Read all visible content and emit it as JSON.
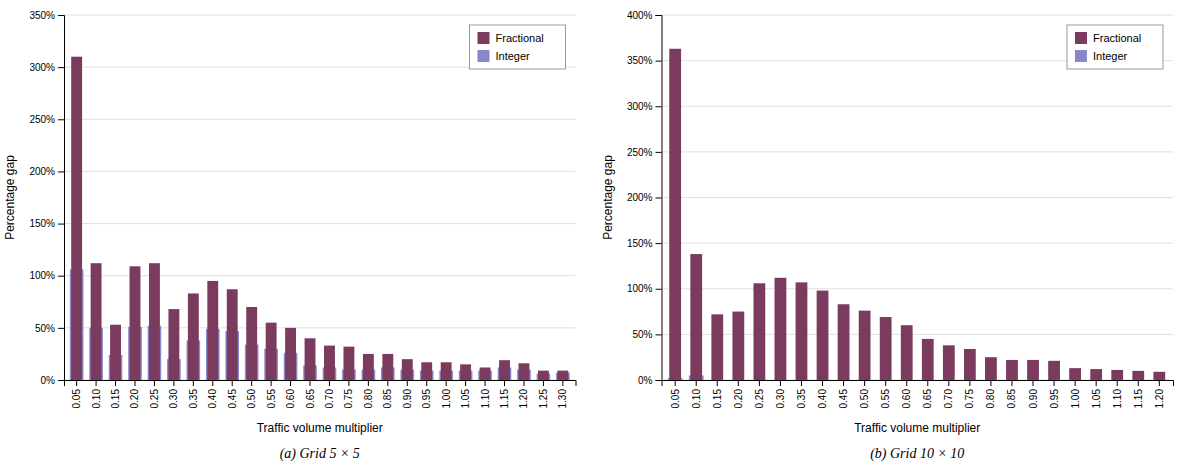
{
  "chart_data": [
    {
      "type": "bar",
      "title": "(a)  Grid 5 × 5",
      "xlabel": "Traffic volume multiplier",
      "ylabel": "Percentage gap",
      "categories": [
        "0.05",
        "0.10",
        "0.15",
        "0.20",
        "0.25",
        "0.30",
        "0.35",
        "0.40",
        "0.45",
        "0.50",
        "0.55",
        "0.60",
        "0.65",
        "0.70",
        "0.75",
        "0.80",
        "0.85",
        "0.90",
        "0.95",
        "1.00",
        "1.05",
        "1.10",
        "1.15",
        "1.20",
        "1.25",
        "1.30"
      ],
      "series": [
        {
          "name": "Fractional",
          "color": "#7B3B5E",
          "values": [
            3.1,
            1.12,
            0.53,
            1.09,
            1.12,
            0.68,
            0.83,
            0.95,
            0.87,
            0.7,
            0.55,
            0.5,
            0.4,
            0.33,
            0.32,
            0.25,
            0.25,
            0.2,
            0.17,
            0.17,
            0.15,
            0.12,
            0.19,
            0.16,
            0.09,
            0.09
          ]
        },
        {
          "name": "Integer",
          "color": "#8888CC",
          "values": [
            1.06,
            0.5,
            0.24,
            0.51,
            0.52,
            0.2,
            0.38,
            0.49,
            0.47,
            0.34,
            0.3,
            0.26,
            0.14,
            0.12,
            0.1,
            0.1,
            0.12,
            0.1,
            0.09,
            0.09,
            0.09,
            0.09,
            0.12,
            0.1,
            0.06,
            0.07
          ]
        }
      ],
      "ylim": [
        0,
        3.5
      ],
      "yticks": [
        {
          "value": 0,
          "label": "0%"
        },
        {
          "value": 0.5,
          "label": "50%"
        },
        {
          "value": 1.0,
          "label": "100%"
        },
        {
          "value": 1.5,
          "label": "150%"
        },
        {
          "value": 2.0,
          "label": "200%"
        },
        {
          "value": 2.5,
          "label": "250%"
        },
        {
          "value": 3.0,
          "label": "300%"
        },
        {
          "value": 3.5,
          "label": "350%"
        }
      ],
      "grid": true,
      "legend": "upper right"
    },
    {
      "type": "bar",
      "title": "(b)  Grid 10 × 10",
      "xlabel": "Traffic volume multiplier",
      "ylabel": "Percentage gap",
      "categories": [
        "0.05",
        "0.10",
        "0.15",
        "0.20",
        "0.25",
        "0.30",
        "0.35",
        "0.40",
        "0.45",
        "0.50",
        "0.55",
        "0.60",
        "0.65",
        "0.70",
        "0.75",
        "0.80",
        "0.85",
        "0.90",
        "0.95",
        "1.00",
        "1.05",
        "1.10",
        "1.15",
        "1.20"
      ],
      "series": [
        {
          "name": "Fractional",
          "color": "#7B3B5E",
          "values": [
            3.63,
            1.38,
            0.72,
            0.75,
            1.06,
            1.12,
            1.07,
            0.98,
            0.83,
            0.76,
            0.69,
            0.6,
            0.45,
            0.38,
            0.34,
            0.25,
            0.22,
            0.22,
            0.21,
            0.13,
            0.12,
            0.11,
            0.1,
            0.09
          ]
        },
        {
          "name": "Integer",
          "color": "#8888CC",
          "values": [
            0.02,
            0.05,
            0.0,
            0.0,
            0.0,
            0.0,
            0.0,
            0.0,
            0.0,
            0.0,
            0.0,
            0.0,
            0.0,
            0.0,
            0.0,
            0.0,
            0.0,
            0.0,
            0.0,
            0.0,
            0.0,
            0.0,
            0.0,
            0.0
          ]
        }
      ],
      "ylim": [
        0,
        4.0
      ],
      "yticks": [
        {
          "value": 0,
          "label": "0%"
        },
        {
          "value": 0.5,
          "label": "50%"
        },
        {
          "value": 1.0,
          "label": "100%"
        },
        {
          "value": 1.5,
          "label": "150%"
        },
        {
          "value": 2.0,
          "label": "200%"
        },
        {
          "value": 2.5,
          "label": "250%"
        },
        {
          "value": 3.0,
          "label": "300%"
        },
        {
          "value": 3.5,
          "label": "350%"
        },
        {
          "value": 4.0,
          "label": "400%"
        }
      ],
      "grid": true,
      "legend": "upper right"
    }
  ]
}
